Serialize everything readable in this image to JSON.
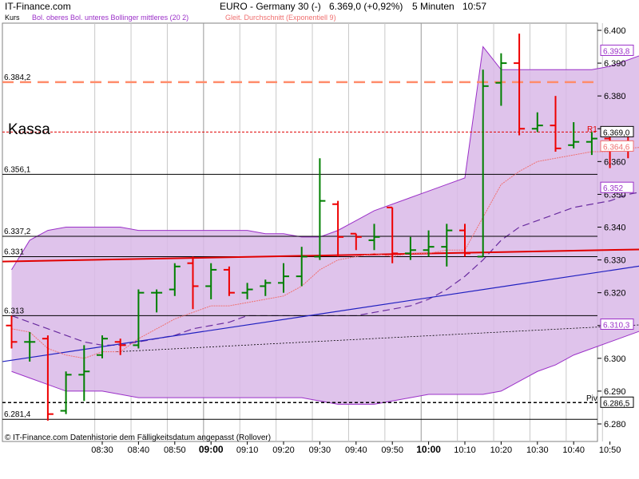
{
  "header": {
    "brand": "IT-Finance.com",
    "title": "EURO - Germany 30 (-)",
    "price_change": "6.369,0 (+0,92%)",
    "interval": "5 Minuten",
    "time": "10:57"
  },
  "legend": {
    "kurs": "Kurs",
    "bollinger": "Bol. oberes Bol. unteres Bollinger mittleres (20 2)",
    "ema": "Gleit. Durchschnitt (Exponentiell 9)"
  },
  "footer_note": "© IT-Finance.com Datenhistorie dem Fälligkeitsdatum angepasst (Rollover)",
  "colors": {
    "up": "#008000",
    "down": "#ee0000",
    "band_fill": "#d9b8e8",
    "band_line": "#9b30c8",
    "ema": "#f07070",
    "pivot_line": "#ff8c6b",
    "trend_red": "#e00000",
    "trend_blue": "#2020c0",
    "grid": "#c8c8c8"
  },
  "chart_data": {
    "type": "candlestick",
    "title": "EURO - Germany 30 (-)",
    "ylim": [
      6277,
      6406
    ],
    "y_ticks": [
      6280,
      6290,
      6300,
      6310,
      6320,
      6330,
      6340,
      6350,
      6360,
      6370,
      6380,
      6390,
      6400
    ],
    "y_tick_labels": [
      "6.280",
      "6.290",
      "6.300",
      "6.310",
      "6.320",
      "6.330",
      "6.340",
      "6.350",
      "6.360",
      "6.370",
      "6.380",
      "6.390",
      "6.400"
    ],
    "x_ticks": [
      {
        "label": "08:30",
        "i": 5,
        "bold": false
      },
      {
        "label": "08:40",
        "i": 7,
        "bold": false
      },
      {
        "label": "08:50",
        "i": 9,
        "bold": false
      },
      {
        "label": "09:00",
        "i": 11,
        "bold": true
      },
      {
        "label": "09:10",
        "i": 13,
        "bold": false
      },
      {
        "label": "09:20",
        "i": 15,
        "bold": false
      },
      {
        "label": "09:30",
        "i": 17,
        "bold": false
      },
      {
        "label": "09:40",
        "i": 19,
        "bold": false
      },
      {
        "label": "09:50",
        "i": 21,
        "bold": false
      },
      {
        "label": "10:00",
        "i": 23,
        "bold": true
      },
      {
        "label": "10:10",
        "i": 25,
        "bold": false
      },
      {
        "label": "10:20",
        "i": 27,
        "bold": false
      },
      {
        "label": "10:30",
        "i": 29,
        "bold": false
      },
      {
        "label": "10:40",
        "i": 31,
        "bold": false
      },
      {
        "label": "10:50",
        "i": 33,
        "bold": false
      }
    ],
    "candles": [
      {
        "o": 6310.0,
        "h": 6313.0,
        "l": 6303.0,
        "c": 6305.0
      },
      {
        "o": 6305.0,
        "h": 6308.0,
        "l": 6299.0,
        "c": 6305.0
      },
      {
        "o": 6306.0,
        "h": 6307.0,
        "l": 6281.0,
        "c": 6283.0
      },
      {
        "o": 6284.0,
        "h": 6296.0,
        "l": 6283.0,
        "c": 6295.0
      },
      {
        "o": 6295.0,
        "h": 6304.0,
        "l": 6287.0,
        "c": 6296.0
      },
      {
        "o": 6301.0,
        "h": 6307.0,
        "l": 6300.0,
        "c": 6306.0
      },
      {
        "o": 6305.0,
        "h": 6306.0,
        "l": 6301.0,
        "c": 6304.0
      },
      {
        "o": 6304.0,
        "h": 6321.0,
        "l": 6303.0,
        "c": 6320.0
      },
      {
        "o": 6320.0,
        "h": 6321.0,
        "l": 6314.0,
        "c": 6320.0
      },
      {
        "o": 6321.0,
        "h": 6329.0,
        "l": 6319.0,
        "c": 6328.0
      },
      {
        "o": 6329.0,
        "h": 6331.0,
        "l": 6315.0,
        "c": 6322.0
      },
      {
        "o": 6322.0,
        "h": 6329.0,
        "l": 6318.0,
        "c": 6327.0
      },
      {
        "o": 6327.0,
        "h": 6328.0,
        "l": 6319.0,
        "c": 6320.0
      },
      {
        "o": 6320.0,
        "h": 6323.0,
        "l": 6318.0,
        "c": 6321.0
      },
      {
        "o": 6322.0,
        "h": 6324.0,
        "l": 6319.0,
        "c": 6323.0
      },
      {
        "o": 6323.0,
        "h": 6329.0,
        "l": 6320.0,
        "c": 6325.0
      },
      {
        "o": 6325.0,
        "h": 6334.0,
        "l": 6322.0,
        "c": 6331.0
      },
      {
        "o": 6331.0,
        "h": 6361.0,
        "l": 6330.0,
        "c": 6348.0
      },
      {
        "o": 6347.0,
        "h": 6348.0,
        "l": 6331.0,
        "c": 6337.0
      },
      {
        "o": 6338.0,
        "h": 6338.0,
        "l": 6333.0,
        "c": 6337.0
      },
      {
        "o": 6336.0,
        "h": 6341.0,
        "l": 6333.0,
        "c": 6337.0
      },
      {
        "o": 6346.0,
        "h": 6346.0,
        "l": 6329.0,
        "c": 6332.0
      },
      {
        "o": 6332.0,
        "h": 6337.0,
        "l": 6330.0,
        "c": 6333.0
      },
      {
        "o": 6333.0,
        "h": 6339.0,
        "l": 6331.0,
        "c": 6334.0
      },
      {
        "o": 6334.0,
        "h": 6341.0,
        "l": 6328.0,
        "c": 6339.0
      },
      {
        "o": 6339.0,
        "h": 6341.0,
        "l": 6331.0,
        "c": 6332.0
      },
      {
        "o": 6331.0,
        "h": 6388.0,
        "l": 6331.0,
        "c": 6383.0
      },
      {
        "o": 6384.0,
        "h": 6393.0,
        "l": 6377.0,
        "c": 6390.0
      },
      {
        "o": 6390.0,
        "h": 6399.0,
        "l": 6368.0,
        "c": 6370.0
      },
      {
        "o": 6370.0,
        "h": 6375.0,
        "l": 6369.0,
        "c": 6371.0
      },
      {
        "o": 6371.0,
        "h": 6380.0,
        "l": 6363.0,
        "c": 6364.0
      },
      {
        "o": 6365.0,
        "h": 6372.0,
        "l": 6364.0,
        "c": 6366.0
      },
      {
        "o": 6366.0,
        "h": 6369.0,
        "l": 6362.0,
        "c": 6367.0
      },
      {
        "o": 6367.0,
        "h": 6369.0,
        "l": 6358.0,
        "c": 6364.0
      },
      {
        "o": 6365.0,
        "h": 6368.0,
        "l": 6361.0,
        "c": 6364.0
      },
      {
        "o": 6363.0,
        "h": 6371.0,
        "l": 6361.0,
        "c": 6368.0
      },
      {
        "o": 6367.0,
        "h": 6372.0,
        "l": 6363.0,
        "c": 6369.0
      }
    ],
    "bollinger_upper": [
      6327,
      6336,
      6339,
      6340,
      6340,
      6340,
      6340,
      6339,
      6339,
      6339,
      6339,
      6339,
      6339,
      6339,
      6338,
      6338,
      6337,
      6337,
      6339,
      6342,
      6345,
      6347,
      6349,
      6351,
      6353,
      6355,
      6395,
      6388,
      6388,
      6388,
      6388,
      6388,
      6388,
      6389,
      6391,
      6393,
      6393.8
    ],
    "bollinger_lower": [
      6296,
      6294,
      6292,
      6290,
      6290,
      6290,
      6289,
      6288,
      6288,
      6288,
      6288,
      6288,
      6288,
      6288,
      6288,
      6288,
      6288,
      6287,
      6286,
      6286,
      6286,
      6287,
      6288,
      6289,
      6289,
      6289,
      6289,
      6290,
      6293,
      6296,
      6298,
      6301,
      6303,
      6305,
      6307,
      6309,
      6310.3
    ],
    "bollinger_middle": [
      6313,
      6311,
      6309,
      6307,
      6305,
      6304,
      6304,
      6305,
      6306,
      6307,
      6309,
      6310,
      6311,
      6313,
      6313,
      6313,
      6313,
      6313,
      6313,
      6313,
      6314,
      6315,
      6316,
      6318,
      6321,
      6325,
      6330,
      6336,
      6340,
      6342,
      6344,
      6346,
      6347,
      6348,
      6350,
      6351,
      6352
    ],
    "ema9": [
      6309,
      6308,
      6303,
      6301,
      6300,
      6302,
      6302,
      6306,
      6309,
      6312,
      6314,
      6316,
      6316,
      6317,
      6318,
      6319,
      6322,
      6327,
      6330,
      6331,
      6332,
      6331,
      6332,
      6332,
      6333,
      6333,
      6343,
      6353,
      6357,
      6360,
      6361,
      6362,
      6363,
      6363,
      6364,
      6364.5,
      6364.6
    ],
    "horizontal_levels": [
      {
        "label": "6.384,2",
        "value": 6384.2,
        "style": "pivot"
      },
      {
        "label": "6.356,1",
        "value": 6356.1,
        "style": "solid"
      },
      {
        "label": "6.337,2",
        "value": 6337.2,
        "style": "solid"
      },
      {
        "label": "6.331",
        "value": 6331.0,
        "style": "solid"
      },
      {
        "label": "6.313",
        "value": 6313.0,
        "style": "solid"
      },
      {
        "label": "6.281,4",
        "value": 6281.4,
        "style": "solid"
      },
      {
        "label": "",
        "value": 6286.5,
        "style": "dashed-black"
      },
      {
        "label": "",
        "value": 6369.0,
        "style": "dashed-red"
      }
    ],
    "trendlines": [
      {
        "name": "red",
        "from": {
          "i": -0.5,
          "v": 6329.5
        },
        "to": {
          "i": 37.5,
          "v": 6333.5
        }
      },
      {
        "name": "blue",
        "from": {
          "i": -0.5,
          "v": 6299
        },
        "to": {
          "i": 37.5,
          "v": 6330.5
        }
      },
      {
        "name": "dotted",
        "from": {
          "i": 5.8,
          "v": 6302
        },
        "to": {
          "i": 37.5,
          "v": 6311
        }
      }
    ],
    "annotations": {
      "kassa": "Kassa",
      "r1": "R1",
      "piv": "Piv"
    },
    "price_tags": [
      {
        "label": "6.393,8",
        "value": 6393.8,
        "color": "#9b30c8"
      },
      {
        "label": "6.369,0",
        "value": 6369.0,
        "color": "#000000"
      },
      {
        "label": "6.364,6",
        "value": 6364.6,
        "color": "#f07070"
      },
      {
        "label": "6.352",
        "value": 6352.0,
        "color": "#9b30c8"
      },
      {
        "label": "6.310,3",
        "value": 6310.3,
        "color": "#9b30c8"
      },
      {
        "label": "6.286,5",
        "value": 6286.5,
        "color": "#000000"
      }
    ]
  }
}
